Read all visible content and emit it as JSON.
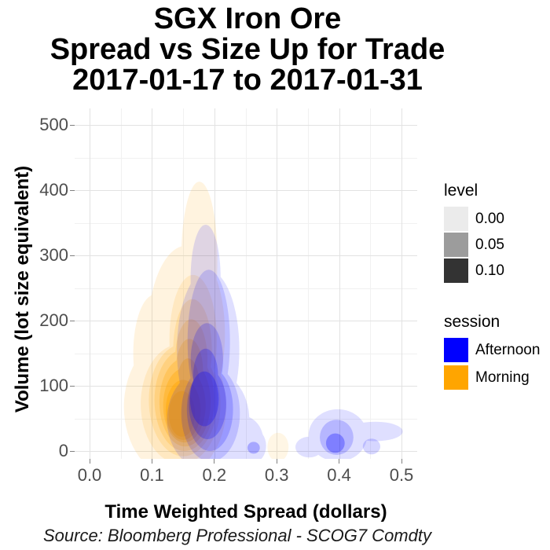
{
  "page": {
    "background": "#FFFFFF"
  },
  "chart": {
    "title_lines": [
      "SGX Iron Ore",
      "Spread vs Size Up for Trade",
      "2017-01-17 to 2017-01-31"
    ],
    "x_axis": {
      "label": "Time Weighted Spread (dollars)",
      "tick_labels": [
        "0.0",
        "0.1",
        "0.2",
        "0.3",
        "0.4",
        "0.5"
      ],
      "tick_values": [
        0,
        0.1,
        0.2,
        0.3,
        0.4,
        0.5
      ],
      "minor_values": [
        0.05,
        0.15,
        0.25,
        0.35,
        0.45
      ],
      "range": [
        0,
        0.5
      ]
    },
    "y_axis": {
      "label": "Volume (lot size equivalent)",
      "tick_labels": [
        "0",
        "100",
        "200",
        "300",
        "400",
        "500"
      ],
      "tick_values": [
        0,
        100,
        200,
        300,
        400,
        500
      ],
      "minor_values": [
        50,
        150,
        250,
        350,
        450
      ],
      "range": [
        0,
        500
      ]
    },
    "caption": "Source: Bloomberg Professional - SCOG7 Comdty",
    "colors": {
      "grid_major": "#E2E2E2",
      "grid_minor": "#F1F1F1",
      "tick_mark": "#808080",
      "tick_text": "#4D4D4D",
      "afternoon": "#0000FF",
      "morning": "#FFA500"
    },
    "legend": {
      "level": {
        "title": "level",
        "items": [
          {
            "label": "0.00",
            "color": "#EBEBEB"
          },
          {
            "label": "0.05",
            "color": "#9C9C9C"
          },
          {
            "label": "0.10",
            "color": "#333333"
          }
        ]
      },
      "session": {
        "title": "session",
        "items": [
          {
            "label": "Afternoon",
            "color": "#0000FF"
          },
          {
            "label": "Morning",
            "color": "#FFA500"
          }
        ]
      }
    },
    "chart_data": {
      "type": "density_2d_contour",
      "title": "SGX Iron Ore Spread vs Size Up for Trade 2017-01-17 to 2017-01-31",
      "xlabel": "Time Weighted Spread (dollars)",
      "ylabel": "Volume (lot size equivalent)",
      "xlim": [
        0,
        0.5
      ],
      "ylim": [
        0,
        500
      ],
      "grid": true,
      "legend_position": "right",
      "level_scale": [
        0.0,
        0.05,
        0.1
      ],
      "sessions": {
        "Afternoon": "#0000FF",
        "Morning": "#FFA500"
      },
      "cluster_summary": {
        "morning_main": {
          "x_center": 0.15,
          "y_center": 75,
          "x_range": [
            0.06,
            0.22
          ],
          "peak_top_y": 410
        },
        "afternoon_main": {
          "x_center": 0.19,
          "y_center": 65,
          "x_range": [
            0.12,
            0.28
          ],
          "peak_top_y": 348
        },
        "afternoon_secondary": {
          "x_center": 0.39,
          "y_center": 20,
          "x_range": [
            0.33,
            0.5
          ],
          "top_y": 65
        },
        "afternoon_minor_blobs": [
          [
            0.263,
            5
          ],
          [
            0.452,
            8
          ]
        ],
        "morning_minor_blob": [
          0.302,
          8
        ]
      },
      "contour_layers": [
        {
          "session": "Morning",
          "opacity": 0.12,
          "ellipses": [
            [
              0.137,
              68,
              0.082,
              108
            ],
            [
              0.155,
              180,
              0.062,
              135
            ],
            [
              0.176,
              295,
              0.029,
              118
            ],
            [
              0.105,
              150,
              0.035,
              90
            ]
          ]
        },
        {
          "session": "Morning",
          "opacity": 0.13,
          "ellipses": [
            [
              0.146,
              72,
              0.064,
              92
            ],
            [
              0.166,
              170,
              0.038,
              100
            ]
          ]
        },
        {
          "session": "Morning",
          "opacity": 0.16,
          "ellipses": [
            [
              0.15,
              78,
              0.055,
              86
            ],
            [
              0.165,
              155,
              0.031,
              78
            ]
          ]
        },
        {
          "session": "Morning",
          "opacity": 0.2,
          "ellipses": [
            [
              0.152,
              78,
              0.048,
              78
            ],
            [
              0.163,
              140,
              0.026,
              62
            ]
          ]
        },
        {
          "session": "Morning",
          "opacity": 0.26,
          "ellipses": [
            [
              0.153,
              75,
              0.041,
              68
            ],
            [
              0.16,
              122,
              0.022,
              50
            ]
          ]
        },
        {
          "session": "Morning",
          "opacity": 0.33,
          "ellipses": [
            [
              0.152,
              70,
              0.034,
              57
            ],
            [
              0.158,
              102,
              0.018,
              40
            ]
          ]
        },
        {
          "session": "Morning",
          "opacity": 0.42,
          "ellipses": [
            [
              0.15,
              63,
              0.028,
              46
            ]
          ]
        },
        {
          "session": "Morning",
          "opacity": 0.5,
          "ellipses": [
            [
              0.148,
              57,
              0.021,
              35
            ]
          ]
        },
        {
          "session": "Morning",
          "opacity": 0.1,
          "ellipses": [
            [
              0.302,
              6,
              0.017,
              22
            ]
          ]
        },
        {
          "session": "Afternoon",
          "opacity": 0.12,
          "ellipses": [
            [
              0.19,
              48,
              0.066,
              78
            ],
            [
              0.19,
              155,
              0.05,
              122
            ],
            [
              0.186,
              265,
              0.024,
              82
            ],
            [
              0.245,
              14,
              0.034,
              40
            ],
            [
              0.262,
              8,
              0.021,
              26
            ]
          ]
        },
        {
          "session": "Afternoon",
          "opacity": 0.12,
          "ellipses": [
            [
              0.398,
              24,
              0.047,
              40
            ],
            [
              0.458,
              30,
              0.044,
              15
            ],
            [
              0.352,
              6,
              0.022,
              16
            ]
          ]
        },
        {
          "session": "Afternoon",
          "opacity": 0.15,
          "ellipses": [
            [
              0.194,
              58,
              0.047,
              74
            ],
            [
              0.191,
              168,
              0.034,
              110
            ]
          ]
        },
        {
          "session": "Afternoon",
          "opacity": 0.19,
          "ellipses": [
            [
              0.193,
              64,
              0.037,
              64
            ],
            [
              0.188,
              140,
              0.026,
              56
            ]
          ]
        },
        {
          "session": "Afternoon",
          "opacity": 0.23,
          "ellipses": [
            [
              0.189,
              72,
              0.03,
              54
            ],
            [
              0.186,
              115,
              0.02,
              42
            ]
          ]
        },
        {
          "session": "Afternoon",
          "opacity": 0.27,
          "ellipses": [
            [
              0.184,
              80,
              0.023,
              42
            ]
          ]
        },
        {
          "session": "Afternoon",
          "opacity": 0.18,
          "ellipses": [
            [
              0.396,
              21,
              0.027,
              27
            ]
          ]
        },
        {
          "session": "Afternoon",
          "opacity": 0.3,
          "ellipses": [
            [
              0.394,
              12,
              0.015,
              15
            ]
          ]
        },
        {
          "session": "Afternoon",
          "opacity": 0.16,
          "ellipses": [
            [
              0.452,
              7,
              0.014,
              12
            ]
          ]
        },
        {
          "session": "Afternoon",
          "opacity": 0.25,
          "ellipses": [
            [
              0.263,
              5,
              0.01,
              9
            ]
          ]
        }
      ]
    }
  }
}
